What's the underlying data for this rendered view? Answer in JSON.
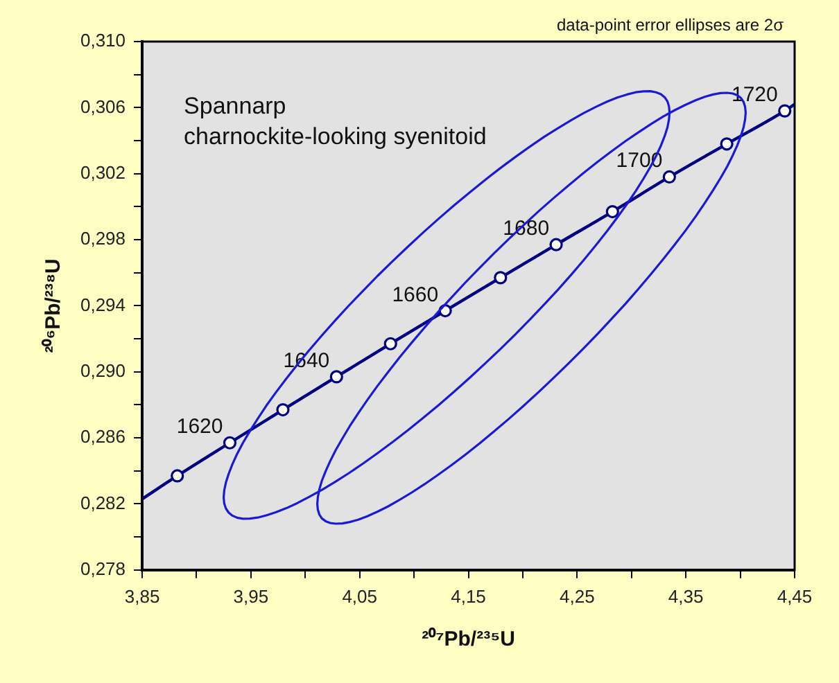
{
  "chart_data": {
    "type": "line",
    "xlabel": "²⁰⁷Pb/²³⁵U",
    "ylabel": "²⁰⁶Pb/²³⁸U",
    "annotations": [
      "data-point error ellipses are 2σ",
      "Spannarp",
      "charnockite-looking syenitoid",
      {
        "text": "1620",
        "x": 3.9306,
        "y": 0.2857
      },
      {
        "text": "1640",
        "x": 4.0287,
        "y": 0.2897
      },
      {
        "text": "1660",
        "x": 4.1287,
        "y": 0.2937
      },
      {
        "text": "1680",
        "x": 4.2307,
        "y": 0.2977
      },
      {
        "text": "1700",
        "x": 4.3348,
        "y": 0.3018
      },
      {
        "text": "1720",
        "x": 4.4409,
        "y": 0.3058
      }
    ],
    "xlim": [
      3.85,
      4.45
    ],
    "xticks": [
      {
        "value": 3.85,
        "label": "3,85"
      },
      {
        "value": 3.9,
        "label": null
      },
      {
        "value": 3.95,
        "label": "3,95"
      },
      {
        "value": 4.0,
        "label": null
      },
      {
        "value": 4.05,
        "label": "4,05"
      },
      {
        "value": 4.1,
        "label": null
      },
      {
        "value": 4.15,
        "label": "4,15"
      },
      {
        "value": 4.2,
        "label": null
      },
      {
        "value": 4.25,
        "label": "4,25"
      },
      {
        "value": 4.3,
        "label": null
      },
      {
        "value": 4.35,
        "label": "4,35"
      },
      {
        "value": 4.4,
        "label": null
      },
      {
        "value": 4.45,
        "label": "4,45"
      }
    ],
    "ylim": [
      0.278,
      0.31
    ],
    "yticks": [
      {
        "value": 0.278,
        "label": "0,278"
      },
      {
        "value": 0.28,
        "label": null
      },
      {
        "value": 0.282,
        "label": "0,282"
      },
      {
        "value": 0.284,
        "label": null
      },
      {
        "value": 0.286,
        "label": "0,286"
      },
      {
        "value": 0.288,
        "label": null
      },
      {
        "value": 0.29,
        "label": "0,290"
      },
      {
        "value": 0.292,
        "label": null
      },
      {
        "value": 0.294,
        "label": "0,294"
      },
      {
        "value": 0.296,
        "label": null
      },
      {
        "value": 0.298,
        "label": "0,298"
      },
      {
        "value": 0.3,
        "label": null
      },
      {
        "value": 0.302,
        "label": "0,302"
      },
      {
        "value": 0.304,
        "label": null
      },
      {
        "value": 0.306,
        "label": "0,306"
      },
      {
        "value": 0.308,
        "label": null
      },
      {
        "value": 0.31,
        "label": "0,310"
      }
    ],
    "grid": false,
    "legend": false,
    "series": [
      {
        "marker": "none",
        "color": "#000080",
        "x": [
          3.85,
          3.8823,
          3.9306,
          3.9794,
          4.0287,
          4.0784,
          4.1287,
          4.1795,
          4.2307,
          4.2825,
          4.3348,
          4.3876,
          4.4409,
          4.45
        ],
        "values": [
          0.2823,
          0.2837,
          0.2857,
          0.2877,
          0.2897,
          0.2917,
          0.2937,
          0.2957,
          0.2977,
          0.2997,
          0.3018,
          0.3038,
          0.3058,
          0.3062
        ]
      },
      {
        "type": "scatter",
        "marker": "circle",
        "color": "#000080",
        "x": [
          3.8823,
          3.9306,
          3.9794,
          4.0287,
          4.0784,
          4.1287,
          4.1795,
          4.2307,
          4.2825,
          4.3348,
          4.3876,
          4.4409
        ],
        "values": [
          0.2837,
          0.2857,
          0.2877,
          0.2897,
          0.2917,
          0.2937,
          0.2957,
          0.2977,
          0.2997,
          0.3018,
          0.3038,
          0.3058
        ]
      }
    ]
  }
}
